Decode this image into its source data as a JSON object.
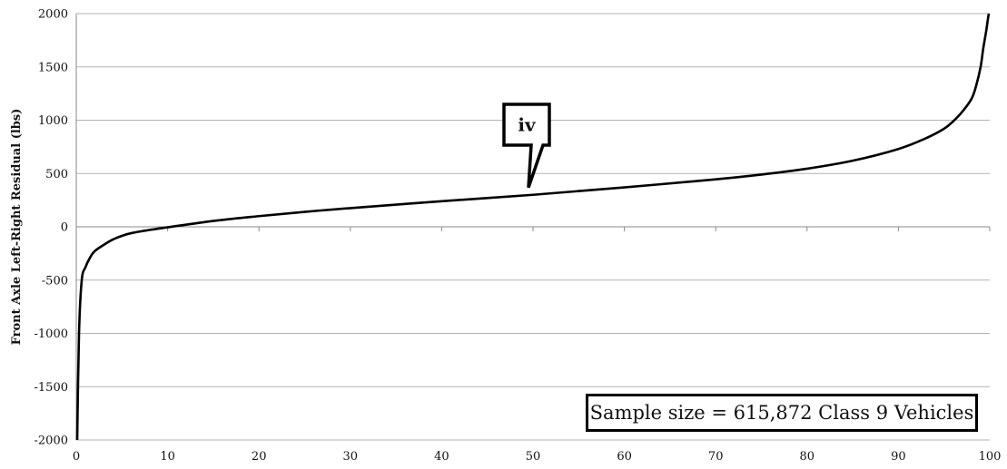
{
  "chart_data": {
    "type": "line",
    "ylabel": "Front Axle Left-Right Residual (lbs)",
    "xlabel": "",
    "title": "",
    "xlim": [
      0,
      100
    ],
    "ylim": [
      -2000,
      2000
    ],
    "x_ticks": [
      0,
      10,
      20,
      30,
      40,
      50,
      60,
      70,
      80,
      90,
      100
    ],
    "y_ticks": [
      -2000,
      -1500,
      -1000,
      -500,
      0,
      500,
      1000,
      1500,
      2000
    ],
    "grid": "horizontal",
    "series": [
      {
        "x": [
          0.1,
          0.3,
          0.6,
          1,
          1.5,
          2,
          3,
          4,
          5,
          6,
          8,
          10,
          15,
          20,
          25,
          30,
          40,
          50,
          60,
          70,
          75,
          80,
          85,
          90,
          93,
          95,
          96,
          97,
          98,
          98.5,
          99,
          99.3,
          99.6,
          99.8,
          99.9
        ],
        "y": [
          -2000,
          -1000,
          -500,
          -380,
          -290,
          -230,
          -170,
          -120,
          -85,
          -60,
          -30,
          -5,
          55,
          100,
          140,
          175,
          240,
          300,
          370,
          445,
          490,
          545,
          620,
          730,
          830,
          920,
          990,
          1080,
          1200,
          1320,
          1500,
          1680,
          1830,
          1950,
          2000
        ],
        "color": "#000000"
      }
    ],
    "annotations": [
      {
        "text": "iv",
        "x": 50,
        "y": 360
      }
    ],
    "note": "Sample size = 615,872 Class 9 Vehicles"
  }
}
